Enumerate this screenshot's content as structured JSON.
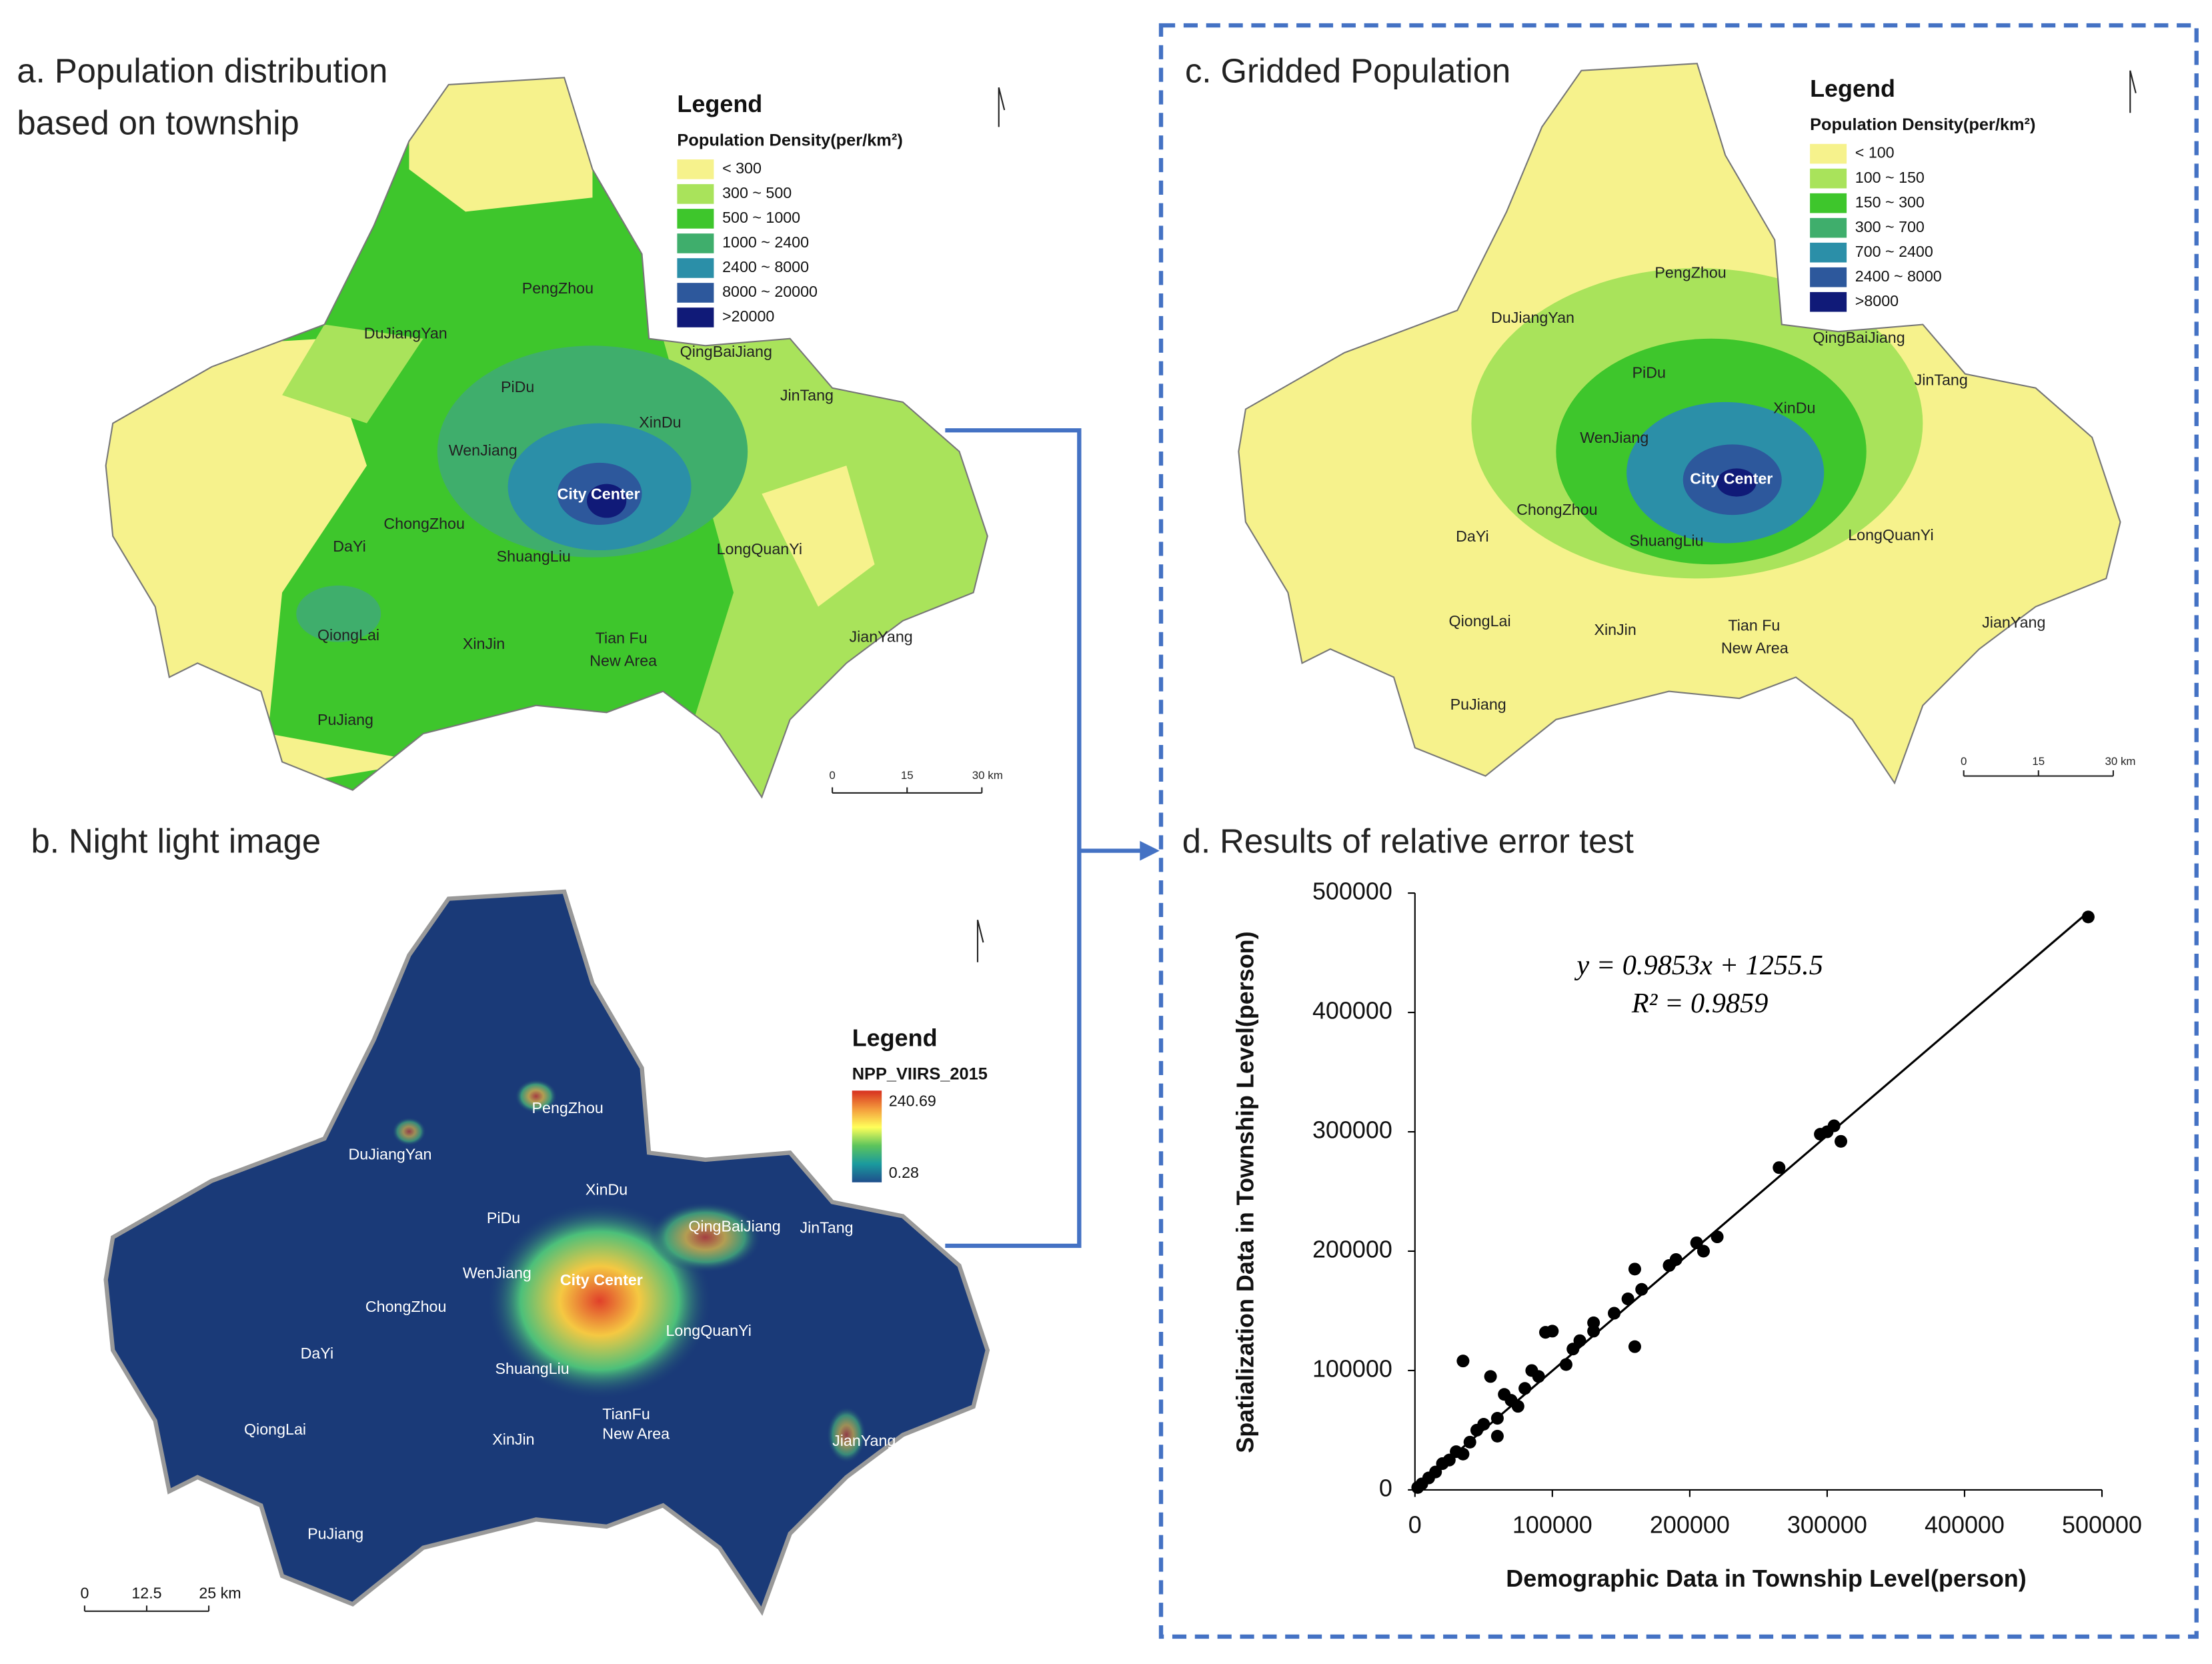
{
  "panel_a": {
    "title_lines": [
      "a. Population distribution",
      "based on township"
    ],
    "legend": {
      "title": "Legend",
      "subtitle": "Population Density(per/km²)",
      "items": [
        {
          "label": "< 300",
          "color": "#f6f28c"
        },
        {
          "label": "300 ~ 500",
          "color": "#a9e35b"
        },
        {
          "label": "500 ~ 1000",
          "color": "#3ec62c"
        },
        {
          "label": "1000 ~ 2400",
          "color": "#3fae6c"
        },
        {
          "label": "2400 ~ 8000",
          "color": "#2b8fa8"
        },
        {
          "label": "8000 ~ 20000",
          "color": "#2d589c"
        },
        {
          "label": ">20000",
          "color": "#101a78"
        }
      ]
    },
    "places": [
      "DuJiangYan",
      "PengZhou",
      "QingBaiJiang",
      "JinTang",
      "PiDu",
      "XinDu",
      "WenJiang",
      "City Center",
      "ChongZhou",
      "DaYi",
      "ShuangLiu",
      "LongQuanYi",
      "QiongLai",
      "XinJin",
      "Tian Fu",
      "New Area",
      "JianYang",
      "PuJiang"
    ],
    "scale": [
      "0",
      "15",
      "30 km"
    ]
  },
  "panel_b": {
    "title": "b. Night light image",
    "legend": {
      "title": "Legend",
      "layer": "NPP_VIIRS_2015",
      "max_label": "240.69",
      "min_label": "0.28",
      "colors": [
        "#d7301f",
        "#f39b3c",
        "#ffff5a",
        "#5cc45c",
        "#1a9a9e",
        "#1f4e8c"
      ]
    },
    "places": [
      "PengZhou",
      "DuJiangYan",
      "XinDu",
      "PiDu",
      "QingBaiJiang",
      "JinTang",
      "WenJiang",
      "City Center",
      "ChongZhou",
      "LongQuanYi",
      "DaYi",
      "ShuangLiu",
      "TianFu",
      "New Area",
      "XinJin",
      "QiongLai",
      "JianYang",
      "PuJiang"
    ],
    "scale": [
      "0",
      "12.5",
      "25 km"
    ]
  },
  "panel_c": {
    "title": "c. Gridded Population",
    "legend": {
      "title": "Legend",
      "subtitle": "Population Density(per/km²)",
      "items": [
        {
          "label": "< 100",
          "color": "#f6f28c"
        },
        {
          "label": "100 ~ 150",
          "color": "#a9e35b"
        },
        {
          "label": "150 ~ 300",
          "color": "#3ec62c"
        },
        {
          "label": "300 ~ 700",
          "color": "#3fae6c"
        },
        {
          "label": "700 ~ 2400",
          "color": "#2b8fa8"
        },
        {
          "label": "2400 ~ 8000",
          "color": "#2d589c"
        },
        {
          "label": ">8000",
          "color": "#101a78"
        }
      ]
    },
    "places": [
      "PengZhou",
      "DuJiangYan",
      "QingBaiJiang",
      "JinTang",
      "PiDu",
      "XinDu",
      "WenJiang",
      "City Center",
      "ChongZhou",
      "DaYi",
      "ShuangLiu",
      "LongQuanYi",
      "QiongLai",
      "XinJin",
      "Tian Fu",
      "New Area",
      "JianYang",
      "PuJiang"
    ],
    "scale": [
      "0",
      "15",
      "30 km"
    ]
  },
  "chart_data": {
    "type": "scatter",
    "title": "d. Results of relative error test",
    "x": [
      490000,
      310000,
      305000,
      300000,
      295000,
      265000,
      220000,
      210000,
      205000,
      190000,
      185000,
      165000,
      160000,
      160000,
      155000,
      145000,
      130000,
      130000,
      120000,
      115000,
      110000,
      100000,
      95000,
      90000,
      85000,
      80000,
      75000,
      70000,
      65000,
      60000,
      60000,
      55000,
      50000,
      45000,
      40000,
      35000,
      35000,
      30000,
      25000,
      20000,
      15000,
      10000,
      5000,
      2000
    ],
    "values": [
      480000,
      292000,
      305000,
      300000,
      298000,
      270000,
      212000,
      200000,
      207000,
      193000,
      188000,
      168000,
      120000,
      185000,
      160000,
      148000,
      140000,
      133000,
      125000,
      118000,
      105000,
      133000,
      132000,
      95000,
      100000,
      85000,
      70000,
      75000,
      80000,
      60000,
      45000,
      95000,
      55000,
      50000,
      40000,
      108000,
      30000,
      32000,
      25000,
      22000,
      15000,
      10000,
      5000,
      2000
    ],
    "color": "#000000",
    "xlim": [
      0,
      500000
    ],
    "ylim": [
      0,
      500000
    ],
    "xticks": [
      0,
      100000,
      200000,
      300000,
      400000,
      500000
    ],
    "yticks": [
      0,
      100000,
      200000,
      300000,
      400000,
      500000
    ],
    "x_label": "Demographic Data in Township Level(person)",
    "y_label": "Spatialization Data in Township Level(person)",
    "trendline": {
      "slope": 0.9853,
      "intercept": 1255.5,
      "label": "y = 0.9853x + 1255.5",
      "r2_label": "R² = 0.9859"
    }
  }
}
